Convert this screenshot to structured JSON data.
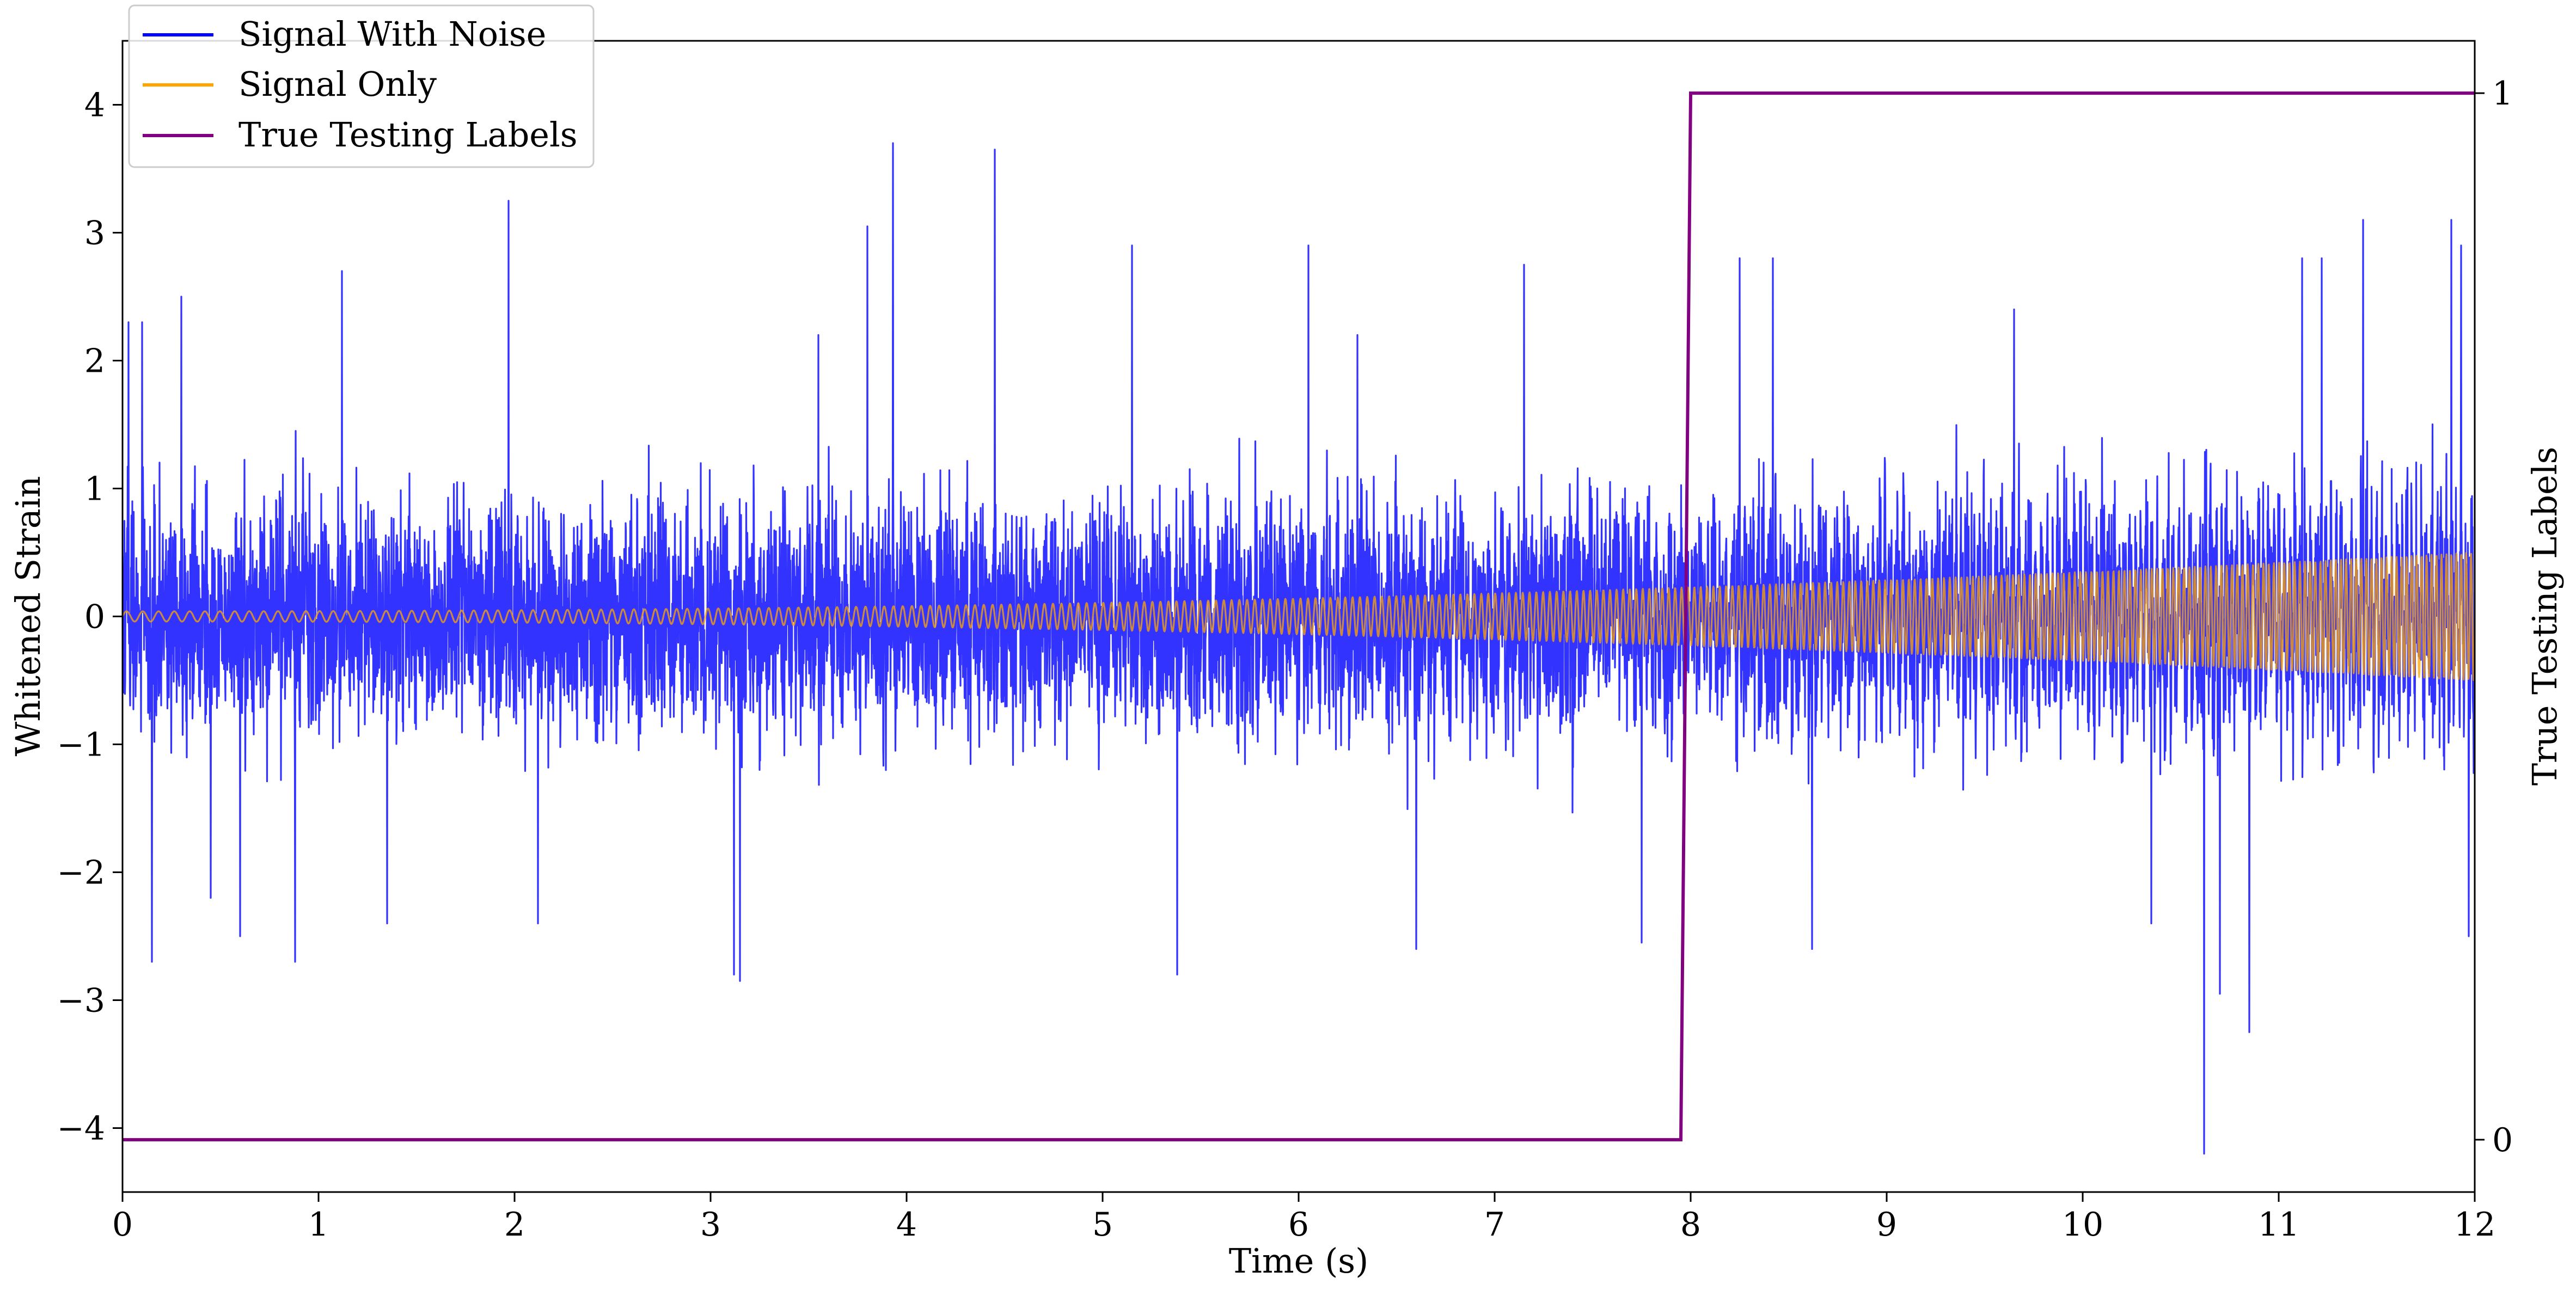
{
  "chart_data": {
    "type": "line",
    "title": "",
    "xlabel": "Time (s)",
    "ylabel_left": "Whitened Strain",
    "ylabel_right": "True Testing Labels",
    "xlim": [
      0,
      12
    ],
    "ylim_left": [
      -4.5,
      4.5
    ],
    "ylim_right": [
      -0.05,
      1.05
    ],
    "x_ticks": [
      0,
      1,
      2,
      3,
      4,
      5,
      6,
      7,
      8,
      9,
      10,
      11,
      12
    ],
    "y_ticks_left": [
      -4,
      -3,
      -2,
      -1,
      0,
      1,
      2,
      3,
      4
    ],
    "y_tick_labels_left": [
      "−4",
      "−3",
      "−2",
      "−1",
      "0",
      "1",
      "2",
      "3",
      "4"
    ],
    "y_ticks_right": [
      0,
      1
    ],
    "grid": false,
    "legend_position": "top-left",
    "series": [
      {
        "name": "Signal With Noise",
        "color": "#0000ff",
        "axis": "left",
        "noise_std": 0.42,
        "spikes": [
          {
            "x": 0.03,
            "y": 2.3
          },
          {
            "x": 0.1,
            "y": 2.3
          },
          {
            "x": 0.15,
            "y": -2.7
          },
          {
            "x": 0.3,
            "y": 2.5
          },
          {
            "x": 0.45,
            "y": -2.2
          },
          {
            "x": 0.6,
            "y": -2.5
          },
          {
            "x": 0.88,
            "y": -2.7
          },
          {
            "x": 1.12,
            "y": 2.7
          },
          {
            "x": 1.35,
            "y": -2.4
          },
          {
            "x": 1.97,
            "y": 3.25
          },
          {
            "x": 2.12,
            "y": -2.4
          },
          {
            "x": 3.12,
            "y": -2.8
          },
          {
            "x": 3.15,
            "y": -2.85
          },
          {
            "x": 3.55,
            "y": 2.2
          },
          {
            "x": 3.8,
            "y": 3.05
          },
          {
            "x": 3.93,
            "y": 3.7
          },
          {
            "x": 4.45,
            "y": 3.65
          },
          {
            "x": 5.15,
            "y": 2.9
          },
          {
            "x": 5.38,
            "y": -2.8
          },
          {
            "x": 6.05,
            "y": 2.9
          },
          {
            "x": 6.3,
            "y": 2.2
          },
          {
            "x": 6.6,
            "y": -2.6
          },
          {
            "x": 7.15,
            "y": 2.75
          },
          {
            "x": 7.75,
            "y": -2.55
          },
          {
            "x": 8.25,
            "y": 2.8
          },
          {
            "x": 8.42,
            "y": 2.8
          },
          {
            "x": 8.62,
            "y": -2.6
          },
          {
            "x": 9.65,
            "y": 2.4
          },
          {
            "x": 10.35,
            "y": -2.4
          },
          {
            "x": 10.62,
            "y": -4.2
          },
          {
            "x": 10.7,
            "y": -2.95
          },
          {
            "x": 10.85,
            "y": -3.25
          },
          {
            "x": 11.12,
            "y": 2.8
          },
          {
            "x": 11.22,
            "y": 2.8
          },
          {
            "x": 11.43,
            "y": 3.1
          },
          {
            "x": 11.88,
            "y": 3.1
          },
          {
            "x": 11.93,
            "y": 2.9
          },
          {
            "x": 11.97,
            "y": -2.5
          }
        ]
      },
      {
        "name": "Signal Only",
        "color": "#ffa500",
        "axis": "left",
        "model": "chirp",
        "amplitude_start": 0.04,
        "amplitude_end": 0.5,
        "frequency_start_hz": 12,
        "frequency_end_hz": 40
      },
      {
        "name": "True Testing Labels",
        "color": "#800080",
        "axis": "right",
        "x": [
          0,
          7.95,
          8.0,
          12
        ],
        "y": [
          0,
          0,
          1,
          1
        ]
      }
    ]
  }
}
